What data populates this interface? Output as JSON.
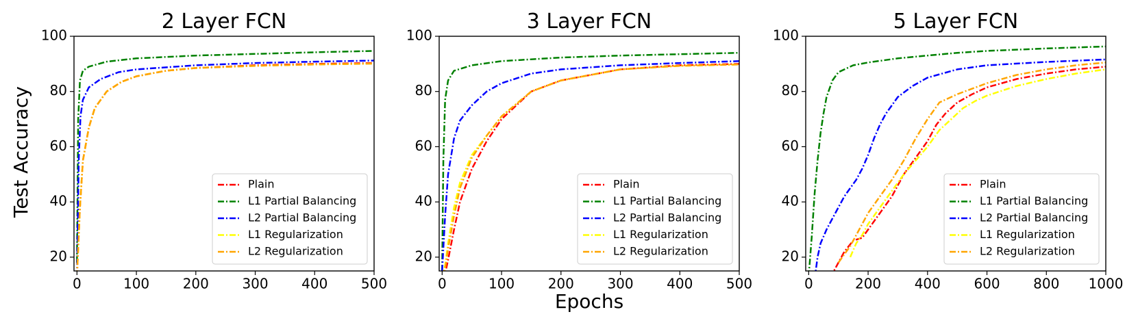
{
  "figure": {
    "ylabel": "Test Accuracy",
    "xlabel": "Epochs"
  },
  "legend": [
    {
      "label": "Plain",
      "color": "#ff0000"
    },
    {
      "label": "L1 Partial Balancing",
      "color": "#008000"
    },
    {
      "label": "L2 Partial Balancing",
      "color": "#0000ff"
    },
    {
      "label": "L1 Regularization",
      "color": "#ffff00"
    },
    {
      "label": "L2 Regularization",
      "color": "#ffa500"
    }
  ],
  "chart_data": [
    {
      "type": "line",
      "title": "2 Layer FCN",
      "xlabel": "Epochs",
      "ylabel": "Test Accuracy",
      "xlim": [
        -5,
        500
      ],
      "ylim": [
        15,
        100
      ],
      "xticks": [
        0,
        100,
        200,
        300,
        400,
        500
      ],
      "yticks": [
        20,
        40,
        60,
        80,
        100
      ],
      "legend_position": "lower-right",
      "grid": false,
      "series": [
        {
          "name": "Plain",
          "color": "#ff0000",
          "x": [
            0,
            5,
            10,
            20,
            30,
            50,
            75,
            100,
            150,
            200,
            300,
            400,
            500
          ],
          "y": [
            13,
            38,
            55,
            67,
            74,
            80,
            83.5,
            85.5,
            87.5,
            88.5,
            89.5,
            90,
            90.3
          ]
        },
        {
          "name": "L1 Partial Balancing",
          "color": "#008000",
          "x": [
            0,
            2,
            5,
            10,
            20,
            50,
            100,
            200,
            300,
            400,
            500
          ],
          "y": [
            18,
            70,
            84,
            87.5,
            89,
            90.8,
            92,
            93,
            93.6,
            94.2,
            94.7
          ]
        },
        {
          "name": "L2 Partial Balancing",
          "color": "#0000ff",
          "x": [
            0,
            3,
            6,
            10,
            20,
            40,
            70,
            100,
            200,
            300,
            400,
            500
          ],
          "y": [
            13,
            55,
            71,
            77,
            81.5,
            84.5,
            87,
            88,
            89.5,
            90.3,
            90.8,
            91.2
          ]
        },
        {
          "name": "L1 Regularization",
          "color": "#ffff00",
          "x": [
            0,
            5,
            10,
            20,
            30,
            50,
            75,
            100,
            150,
            200,
            300,
            400,
            500
          ],
          "y": [
            13,
            38,
            55,
            67,
            74,
            80,
            83.5,
            85.5,
            87.5,
            88.5,
            89.3,
            89.8,
            90.1
          ]
        },
        {
          "name": "L2 Regularization",
          "color": "#ffa500",
          "x": [
            0,
            5,
            10,
            20,
            30,
            50,
            75,
            100,
            150,
            200,
            300,
            400,
            500
          ],
          "y": [
            13,
            38,
            55,
            67,
            74,
            80,
            83.5,
            85.5,
            87.5,
            88.5,
            89.3,
            89.8,
            90.1
          ]
        }
      ]
    },
    {
      "type": "line",
      "title": "3 Layer FCN",
      "xlabel": "Epochs",
      "ylabel": "Test Accuracy",
      "xlim": [
        -5,
        500
      ],
      "ylim": [
        15,
        100
      ],
      "xticks": [
        0,
        100,
        200,
        300,
        400,
        500
      ],
      "yticks": [
        20,
        40,
        60,
        80,
        100
      ],
      "legend_position": "lower-right",
      "grid": false,
      "series": [
        {
          "name": "Plain",
          "color": "#ff0000",
          "x": [
            0,
            5,
            10,
            20,
            30,
            50,
            75,
            100,
            150,
            200,
            300,
            400,
            500
          ],
          "y": [
            12,
            14,
            19,
            30,
            40,
            52,
            62,
            70,
            80,
            84,
            88,
            89.5,
            90
          ]
        },
        {
          "name": "L1 Partial Balancing",
          "color": "#008000",
          "x": [
            0,
            2,
            5,
            10,
            20,
            50,
            100,
            200,
            300,
            400,
            500
          ],
          "y": [
            15,
            55,
            77,
            84,
            87.5,
            89.5,
            91,
            92.3,
            93,
            93.5,
            94
          ]
        },
        {
          "name": "L2 Partial Balancing",
          "color": "#0000ff",
          "x": [
            0,
            5,
            10,
            20,
            30,
            50,
            75,
            100,
            150,
            200,
            300,
            400,
            500
          ],
          "y": [
            15,
            35,
            50,
            63,
            69.5,
            75,
            80,
            83,
            86.5,
            88,
            89.5,
            90.3,
            91
          ]
        },
        {
          "name": "L1 Regularization",
          "color": "#ffff00",
          "x": [
            0,
            5,
            10,
            20,
            30,
            50,
            75,
            100,
            150,
            200,
            300,
            400,
            500
          ],
          "y": [
            12,
            17,
            25,
            38,
            47,
            57,
            64,
            71,
            80,
            84,
            88,
            89.3,
            89.8
          ]
        },
        {
          "name": "L2 Regularization",
          "color": "#ffa500",
          "x": [
            0,
            5,
            10,
            20,
            30,
            50,
            75,
            100,
            150,
            200,
            300,
            400,
            500
          ],
          "y": [
            12,
            16,
            23,
            35,
            45,
            56,
            64,
            71,
            80,
            84,
            88,
            89.3,
            89.8
          ]
        }
      ]
    },
    {
      "type": "line",
      "title": "5 Layer FCN",
      "xlabel": "Epochs",
      "ylabel": "Test Accuracy",
      "xlim": [
        -10,
        1000
      ],
      "ylim": [
        15,
        100
      ],
      "xticks": [
        0,
        200,
        400,
        600,
        800,
        1000
      ],
      "yticks": [
        20,
        40,
        60,
        80,
        100
      ],
      "legend_position": "lower-right",
      "grid": false,
      "series": [
        {
          "name": "Plain",
          "color": "#ff0000",
          "x": [
            40,
            80,
            100,
            120,
            150,
            180,
            200,
            240,
            280,
            320,
            360,
            400,
            430,
            460,
            500,
            550,
            600,
            700,
            800,
            900,
            1000
          ],
          "y": [
            10,
            14,
            18,
            22,
            26,
            27,
            30,
            36,
            42,
            50,
            56,
            62,
            68,
            72,
            76,
            79,
            81.5,
            84.5,
            86.5,
            88,
            89
          ]
        },
        {
          "name": "L1 Partial Balancing",
          "color": "#008000",
          "x": [
            0,
            10,
            20,
            30,
            40,
            50,
            60,
            80,
            100,
            150,
            200,
            300,
            400,
            500,
            600,
            800,
            1000
          ],
          "y": [
            13,
            27,
            43,
            55,
            65,
            72,
            78,
            84,
            87,
            89.5,
            90.5,
            92,
            93,
            94,
            94.7,
            95.6,
            96.3
          ]
        },
        {
          "name": "L2 Partial Balancing",
          "color": "#0000ff",
          "x": [
            20,
            30,
            40,
            60,
            80,
            100,
            120,
            140,
            160,
            180,
            200,
            220,
            240,
            260,
            280,
            300,
            350,
            400,
            500,
            600,
            800,
            1000
          ],
          "y": [
            12,
            20,
            25,
            30,
            34,
            38,
            42,
            45,
            48,
            52,
            57,
            63,
            68,
            72,
            75,
            78,
            82,
            85,
            88,
            89.5,
            90.7,
            91.6
          ]
        },
        {
          "name": "L1 Regularization",
          "color": "#ffff00",
          "x": [
            140,
            160,
            180,
            200,
            240,
            280,
            320,
            360,
            400,
            440,
            480,
            520,
            560,
            600,
            700,
            800,
            900,
            1000
          ],
          "y": [
            20,
            25,
            28,
            32,
            38,
            44,
            50,
            55,
            60,
            66,
            70,
            74,
            76.5,
            78.5,
            82,
            84.5,
            86.5,
            88
          ]
        },
        {
          "name": "L2 Regularization",
          "color": "#ffa500",
          "x": [
            100,
            140,
            170,
            200,
            240,
            280,
            320,
            360,
            400,
            440,
            500,
            600,
            700,
            800,
            900,
            1000
          ],
          "y": [
            18,
            24,
            30,
            36,
            42,
            48,
            55,
            63,
            70,
            76,
            79,
            83,
            86,
            88,
            89.5,
            90.5
          ]
        }
      ]
    }
  ]
}
